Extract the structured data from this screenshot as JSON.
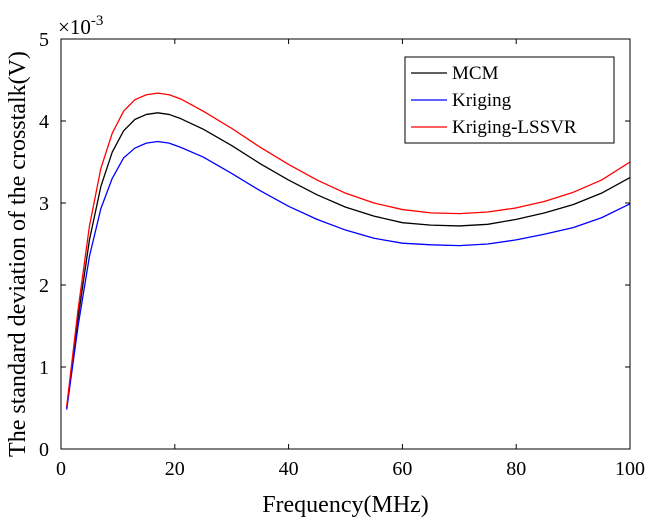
{
  "chart_data": {
    "type": "line",
    "title": "",
    "xlabel": "Frequency(MHz)",
    "ylabel": "The standard deviation of the crosstalk(V)",
    "xlim": [
      0,
      100
    ],
    "ylim": [
      0,
      5
    ],
    "xticks": [
      0,
      20,
      40,
      60,
      80,
      100
    ],
    "yticks": [
      0,
      1,
      2,
      3,
      4,
      5
    ],
    "xtick_labels": [
      "0",
      "20",
      "40",
      "60",
      "80",
      "100"
    ],
    "ytick_labels": [
      "0",
      "1",
      "2",
      "3",
      "4",
      "5"
    ],
    "y_scale_base": "×10",
    "y_scale_exponent": "-3",
    "grid": false,
    "legend_position": "top-right",
    "x": [
      1,
      3,
      5,
      7,
      9,
      11,
      13,
      15,
      17,
      19,
      21,
      25,
      30,
      35,
      40,
      45,
      50,
      55,
      60,
      65,
      70,
      75,
      80,
      85,
      90,
      95,
      100
    ],
    "series": [
      {
        "name": "MCM",
        "color": "#000000",
        "values": [
          0.5,
          1.6,
          2.55,
          3.2,
          3.62,
          3.88,
          4.02,
          4.08,
          4.1,
          4.08,
          4.03,
          3.9,
          3.7,
          3.48,
          3.28,
          3.1,
          2.95,
          2.84,
          2.76,
          2.73,
          2.72,
          2.74,
          2.8,
          2.88,
          2.98,
          3.12,
          3.31
        ]
      },
      {
        "name": "Kriging",
        "color": "#0000ff",
        "values": [
          0.48,
          1.5,
          2.35,
          2.93,
          3.3,
          3.55,
          3.67,
          3.73,
          3.75,
          3.73,
          3.68,
          3.56,
          3.36,
          3.15,
          2.96,
          2.8,
          2.67,
          2.57,
          2.51,
          2.49,
          2.48,
          2.5,
          2.55,
          2.62,
          2.7,
          2.82,
          2.99
        ]
      },
      {
        "name": "Kriging-LSSVR",
        "color": "#ff0000",
        "values": [
          0.52,
          1.7,
          2.72,
          3.42,
          3.85,
          4.12,
          4.26,
          4.32,
          4.34,
          4.32,
          4.27,
          4.12,
          3.91,
          3.68,
          3.47,
          3.28,
          3.12,
          3.0,
          2.92,
          2.88,
          2.87,
          2.89,
          2.94,
          3.02,
          3.13,
          3.28,
          3.5
        ]
      }
    ]
  }
}
